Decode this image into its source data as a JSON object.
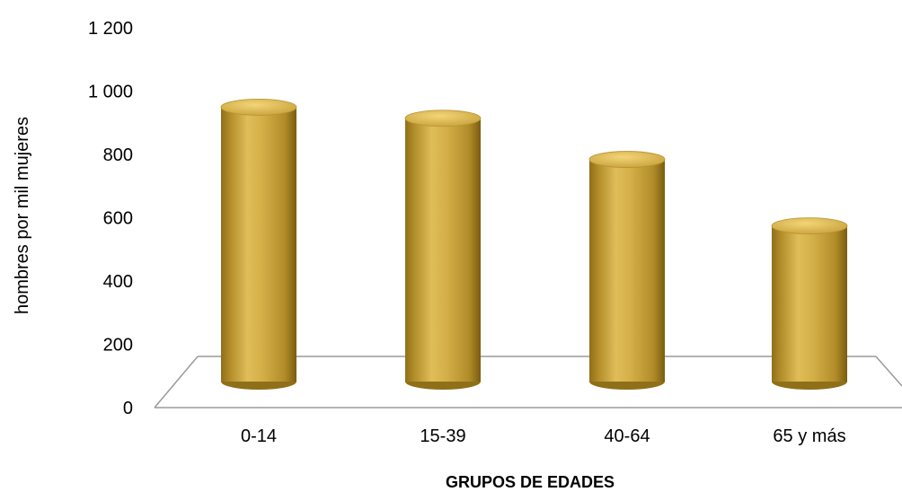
{
  "chart_data": {
    "type": "bar",
    "subtype": "3d-cylinder",
    "categories": [
      "0-14",
      "15-39",
      "40-64",
      "65 y más"
    ],
    "values": [
      1040,
      1005,
      875,
      665
    ],
    "ylim": [
      0,
      1200
    ],
    "yticks": [
      0,
      200,
      400,
      600,
      800,
      1000,
      1200
    ],
    "ytick_labels": [
      "0",
      "200",
      "400",
      "600",
      "800",
      "1 000",
      "1 200"
    ],
    "ylabel": "hombres por mil mujeres",
    "xlabel": "GRUPOS DE EDADES",
    "grid": false,
    "legend": "none",
    "colors": {
      "bar_light": "#e3bf58",
      "bar_mid": "#c7a138",
      "bar_dark": "#8a6a14",
      "top_cap": "#d9b24a",
      "floor_line": "#9a9a9a"
    }
  }
}
